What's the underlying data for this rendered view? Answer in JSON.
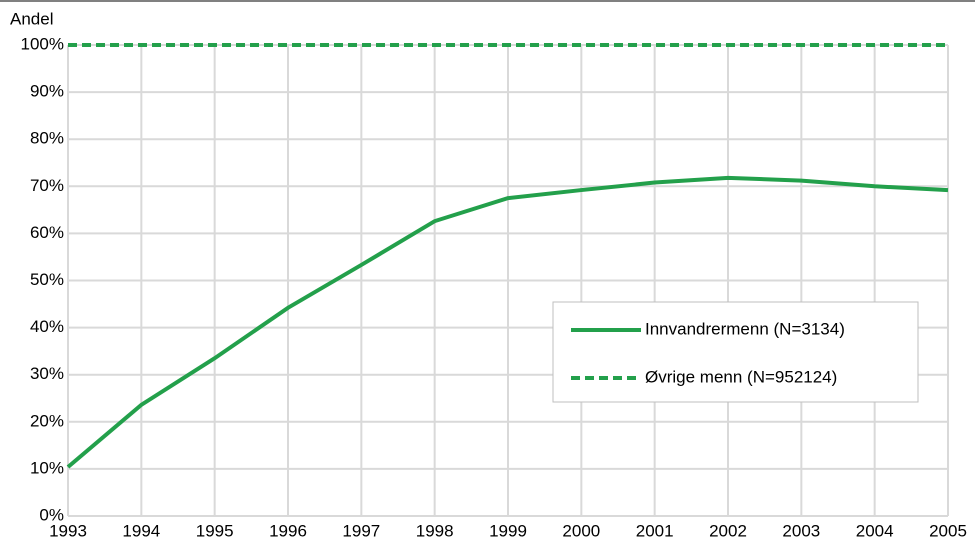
{
  "chart_data": {
    "type": "line",
    "y_label": "Andel",
    "x": [
      1993,
      1994,
      1995,
      1996,
      1997,
      1998,
      1999,
      2000,
      2001,
      2002,
      2003,
      2004,
      2005
    ],
    "xlim": [
      1993,
      2005
    ],
    "xticks": [
      1993,
      1994,
      1995,
      1996,
      1997,
      1998,
      1999,
      2000,
      2001,
      2002,
      2003,
      2004,
      2005
    ],
    "ylim": [
      0,
      100
    ],
    "yticks": [
      {
        "value": 0,
        "label": "0%"
      },
      {
        "value": 10,
        "label": "10%"
      },
      {
        "value": 20,
        "label": "20%"
      },
      {
        "value": 30,
        "label": "30%"
      },
      {
        "value": 40,
        "label": "40%"
      },
      {
        "value": 50,
        "label": "50%"
      },
      {
        "value": 60,
        "label": "60%"
      },
      {
        "value": 70,
        "label": "70%"
      },
      {
        "value": 80,
        "label": "80%"
      },
      {
        "value": 90,
        "label": "90%"
      },
      {
        "value": 100,
        "label": "100%"
      }
    ],
    "grid": true,
    "legend": "center right",
    "series": [
      {
        "name": "Innvandrermenn (N=3134)",
        "color": "#23a04b",
        "style": "solid",
        "values": [
          10.4,
          23.6,
          33.5,
          44.2,
          53.3,
          62.6,
          67.5,
          69.2,
          70.8,
          71.8,
          71.2,
          70.0,
          69.2
        ]
      },
      {
        "name": "Øvrige menn (N=952124)",
        "color": "#23a04b",
        "style": "dashed",
        "values": [
          100,
          100,
          100,
          100,
          100,
          100,
          100,
          100,
          100,
          100,
          100,
          100,
          100
        ]
      }
    ]
  }
}
